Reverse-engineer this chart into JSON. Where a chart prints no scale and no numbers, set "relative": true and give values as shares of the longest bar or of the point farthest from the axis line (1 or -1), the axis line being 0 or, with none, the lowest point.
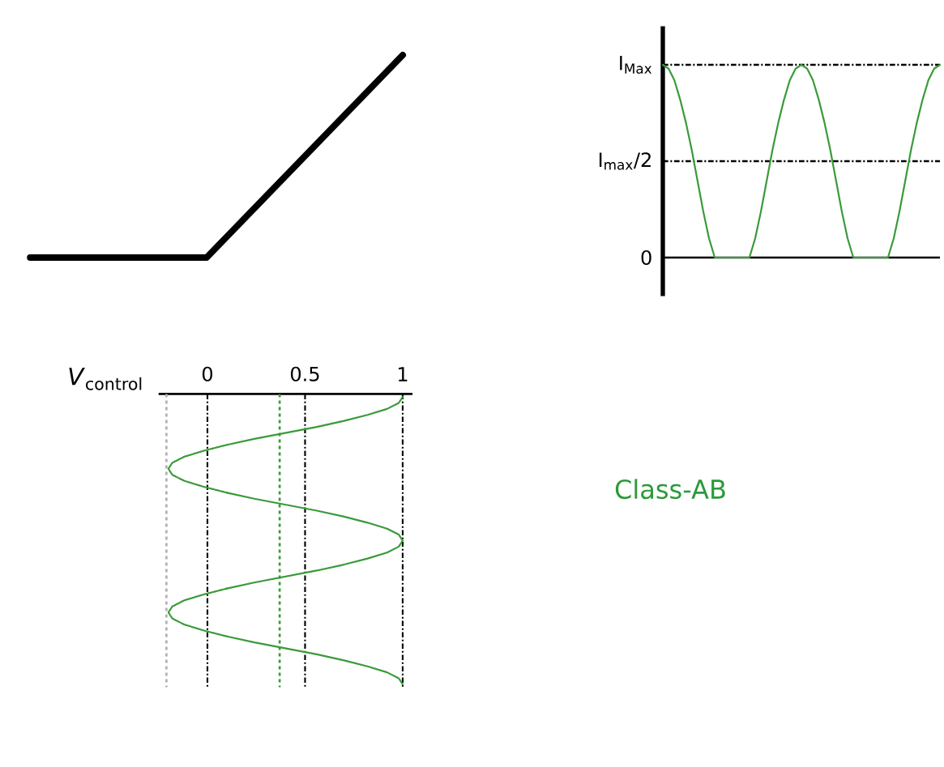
{
  "chart_data": [
    {
      "type": "line",
      "relative": true,
      "tick_labels": false,
      "categories": [
        null,
        null,
        null,
        null,
        null,
        null,
        null,
        null,
        null,
        null,
        null,
        null,
        null,
        null,
        null,
        null,
        null,
        null,
        null,
        null,
        null,
        null,
        null,
        null,
        null,
        null,
        null
      ],
      "series": [
        {
          "color": "#000000",
          "values": [
            0,
            0,
            0,
            0,
            0,
            0,
            0,
            0,
            0,
            0,
            0.1,
            0.2,
            0.3,
            0.4,
            0.5,
            0.6,
            0.7,
            0.8,
            0.9,
            1,
            null,
            null,
            null,
            null,
            null,
            null,
            null
          ]
        }
      ]
    },
    {
      "type": "line",
      "relative": true,
      "tick_labels": false,
      "categories": [
        null,
        null,
        null,
        null,
        null,
        null,
        null,
        null,
        null,
        null,
        null,
        null,
        null,
        null,
        null,
        null,
        null,
        null,
        null,
        null,
        null,
        null,
        null,
        null,
        null,
        null,
        null,
        null,
        null,
        null,
        null,
        null,
        null,
        null,
        null,
        null,
        null,
        null,
        null,
        null,
        null,
        null,
        null,
        null,
        null,
        null,
        null,
        null,
        null
      ],
      "series": [
        {
          "color": "#3a9a3a",
          "values": [
            1,
            0.98,
            0.92,
            0.82,
            0.7,
            0.56,
            0.4,
            0.24,
            0.1,
            0,
            0,
            0,
            0,
            0,
            0,
            0,
            0.1,
            0.24,
            0.4,
            0.56,
            0.7,
            0.82,
            0.92,
            0.98,
            1,
            0.98,
            0.92,
            0.82,
            0.7,
            0.56,
            0.4,
            0.24,
            0.1,
            0,
            0,
            0,
            0,
            0,
            0,
            0,
            0.1,
            0.24,
            0.4,
            0.56,
            0.7,
            0.82,
            0.92,
            0.98,
            1
          ]
        }
      ],
      "ref_lines": [
        {
          "axis": "y",
          "value": 0,
          "label": "0",
          "color": "#000000",
          "line_style": "solid"
        },
        {
          "axis": "y",
          "value": 0.5,
          "label": "I$_{max}$/2",
          "color": "#000000",
          "line_style": "dashdot"
        },
        {
          "axis": "y",
          "value": 1,
          "label": "I$_{Max}$",
          "color": "#000000",
          "line_style": "dashdot"
        }
      ]
    },
    {
      "type": "line",
      "orientation": "horizontal",
      "xlabel": "*V*$_{control}$",
      "annotations": [
        "Class-AB"
      ],
      "categories": [
        null,
        null,
        null,
        null,
        null,
        null,
        null,
        null,
        null,
        null,
        null,
        null,
        null,
        null,
        null,
        null,
        null,
        null,
        null,
        null,
        null,
        null,
        null,
        null,
        null,
        null,
        null,
        null,
        null,
        null,
        null,
        null,
        null,
        null,
        null,
        null,
        null,
        null,
        null,
        null,
        null,
        null,
        null,
        null,
        null,
        null,
        null,
        null,
        null
      ],
      "xlim": [
        -0.25,
        1.05
      ],
      "xticks": [
        0,
        0.5,
        1
      ],
      "grid": "x",
      "tick_labels": "x",
      "series": [
        {
          "color": "#3a9a3a",
          "line_style": "solid",
          "values": [
            1.0,
            0.98,
            0.92,
            0.82,
            0.7,
            0.56,
            0.4,
            0.24,
            0.1,
            null,
            null,
            null,
            null,
            null,
            null,
            null,
            0.1,
            0.24,
            0.4,
            0.56,
            0.7,
            0.82,
            0.92,
            0.98,
            1.0,
            0.98,
            0.92,
            0.82,
            0.7,
            0.56,
            0.4,
            0.24,
            0.1,
            null,
            null,
            null,
            null,
            null,
            null,
            null,
            0.1,
            0.24,
            0.4,
            0.56,
            0.7,
            0.82,
            0.92,
            0.98,
            1.0
          ]
        },
        {
          "color": "#3a9a3a",
          "line_style": "dotted",
          "values": [
            null,
            null,
            null,
            null,
            null,
            null,
            null,
            null,
            0.1,
            -0.02,
            -0.12,
            -0.18,
            -0.2,
            -0.18,
            -0.12,
            -0.02,
            0.1,
            null,
            null,
            null,
            null,
            null,
            null,
            null,
            null,
            null,
            null,
            null,
            null,
            null,
            null,
            null,
            0.1,
            -0.02,
            -0.12,
            -0.18,
            -0.2,
            -0.18,
            -0.12,
            -0.02,
            0.1,
            null,
            null,
            null,
            null,
            null,
            null,
            null,
            null
          ]
        }
      ],
      "ref_lines": [
        {
          "axis": "x",
          "value": 0.37,
          "color": "#3a9a3a",
          "line_style": "dashed"
        },
        {
          "axis": "x",
          "value": -0.21,
          "color": "#b0b0b0",
          "line_style": "dashed"
        }
      ]
    }
  ]
}
